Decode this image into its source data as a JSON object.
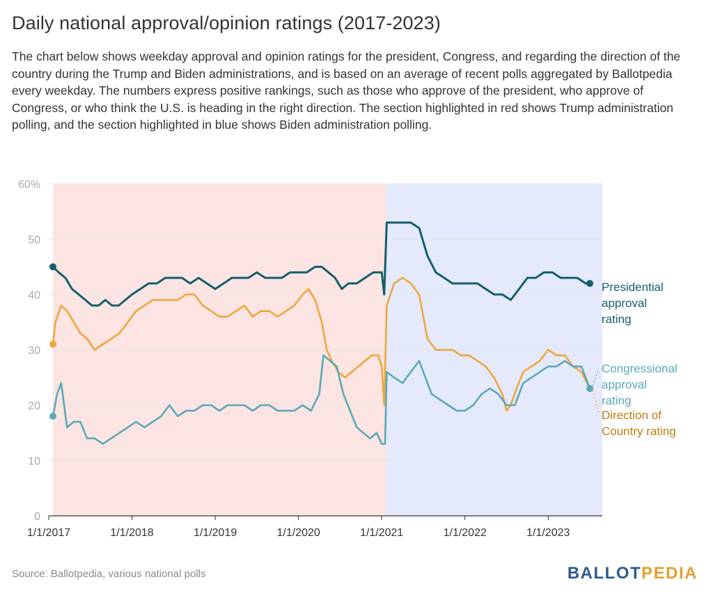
{
  "title": "Daily national approval/opinion ratings (2017-2023)",
  "description": "The chart below shows weekday approval and opinion ratings for the president, Congress, and regarding the direction of the country during the Trump and Biden administrations, and is based on an average of recent polls aggregated by Ballotpedia every weekday. The numbers express positive rankings, such as those who approve of the president, who approve of Congress, or who think the U.S. is heading in the right direction. The section highlighted in red shows Trump administration polling, and the section highlighted in blue shows Biden administration polling.",
  "source": "Source: Ballotpedia, various national polls",
  "logo": {
    "part1": "BALLOT",
    "part2": "PEDIA"
  },
  "colors": {
    "presidential": "#135e6b",
    "congressional": "#5aa8b5",
    "direction": "#f0a63a",
    "direction_label": "#c07c10",
    "trump_shade": "#fbe4e2",
    "biden_shade": "#e4e9fb"
  },
  "chart_data": {
    "type": "line",
    "y_ticks": [
      "0",
      "10",
      "20",
      "30",
      "40",
      "50",
      "60%"
    ],
    "y_tick_values": [
      0,
      10,
      20,
      30,
      40,
      50,
      60
    ],
    "ylim": [
      0,
      60
    ],
    "x_ticks": [
      "1/1/2017",
      "1/1/2018",
      "1/1/2019",
      "1/1/2020",
      "1/1/2021",
      "1/1/2022",
      "1/1/2023"
    ],
    "x_tick_values": [
      2017,
      2018,
      2019,
      2020,
      2021,
      2022,
      2023
    ],
    "xlim": [
      2017.0,
      2023.65
    ],
    "shaded_regions": [
      {
        "from": 2017.05,
        "to": 2021.05,
        "color_key": "trump_shade"
      },
      {
        "from": 2021.05,
        "to": 2023.65,
        "color_key": "biden_shade"
      }
    ],
    "series": [
      {
        "name": "Presidential approval rating",
        "label_lines": [
          "Presidential",
          "approval",
          "rating"
        ],
        "color_key": "presidential",
        "label_color_key": "presidential",
        "points": [
          [
            2017.05,
            45
          ],
          [
            2017.12,
            44
          ],
          [
            2017.2,
            43
          ],
          [
            2017.28,
            41
          ],
          [
            2017.36,
            40
          ],
          [
            2017.44,
            39
          ],
          [
            2017.52,
            38
          ],
          [
            2017.6,
            38
          ],
          [
            2017.68,
            39
          ],
          [
            2017.76,
            38
          ],
          [
            2017.84,
            38
          ],
          [
            2017.92,
            39
          ],
          [
            2018.0,
            40
          ],
          [
            2018.1,
            41
          ],
          [
            2018.2,
            42
          ],
          [
            2018.3,
            42
          ],
          [
            2018.4,
            43
          ],
          [
            2018.5,
            43
          ],
          [
            2018.6,
            43
          ],
          [
            2018.7,
            42
          ],
          [
            2018.8,
            43
          ],
          [
            2018.9,
            42
          ],
          [
            2019.0,
            41
          ],
          [
            2019.1,
            42
          ],
          [
            2019.2,
            43
          ],
          [
            2019.3,
            43
          ],
          [
            2019.4,
            43
          ],
          [
            2019.5,
            44
          ],
          [
            2019.6,
            43
          ],
          [
            2019.7,
            43
          ],
          [
            2019.8,
            43
          ],
          [
            2019.9,
            44
          ],
          [
            2020.0,
            44
          ],
          [
            2020.1,
            44
          ],
          [
            2020.2,
            45
          ],
          [
            2020.28,
            45
          ],
          [
            2020.36,
            44
          ],
          [
            2020.44,
            43
          ],
          [
            2020.52,
            41
          ],
          [
            2020.6,
            42
          ],
          [
            2020.7,
            42
          ],
          [
            2020.8,
            43
          ],
          [
            2020.9,
            44
          ],
          [
            2021.0,
            44
          ],
          [
            2021.03,
            40
          ],
          [
            2021.06,
            53
          ],
          [
            2021.15,
            53
          ],
          [
            2021.25,
            53
          ],
          [
            2021.35,
            53
          ],
          [
            2021.45,
            52
          ],
          [
            2021.55,
            47
          ],
          [
            2021.65,
            44
          ],
          [
            2021.75,
            43
          ],
          [
            2021.85,
            42
          ],
          [
            2021.95,
            42
          ],
          [
            2022.05,
            42
          ],
          [
            2022.15,
            42
          ],
          [
            2022.25,
            41
          ],
          [
            2022.35,
            40
          ],
          [
            2022.45,
            40
          ],
          [
            2022.55,
            39
          ],
          [
            2022.65,
            41
          ],
          [
            2022.75,
            43
          ],
          [
            2022.85,
            43
          ],
          [
            2022.95,
            44
          ],
          [
            2023.05,
            44
          ],
          [
            2023.15,
            43
          ],
          [
            2023.25,
            43
          ],
          [
            2023.35,
            43
          ],
          [
            2023.45,
            42
          ],
          [
            2023.5,
            42
          ]
        ]
      },
      {
        "name": "Congressional approval rating",
        "label_lines": [
          "Congressional",
          "approval",
          "rating"
        ],
        "color_key": "congressional",
        "label_color_key": "congressional",
        "points": [
          [
            2017.05,
            18
          ],
          [
            2017.1,
            22
          ],
          [
            2017.15,
            24
          ],
          [
            2017.22,
            16
          ],
          [
            2017.3,
            17
          ],
          [
            2017.38,
            17
          ],
          [
            2017.46,
            14
          ],
          [
            2017.55,
            14
          ],
          [
            2017.65,
            13
          ],
          [
            2017.75,
            14
          ],
          [
            2017.85,
            15
          ],
          [
            2017.95,
            16
          ],
          [
            2018.05,
            17
          ],
          [
            2018.15,
            16
          ],
          [
            2018.25,
            17
          ],
          [
            2018.35,
            18
          ],
          [
            2018.45,
            20
          ],
          [
            2018.55,
            18
          ],
          [
            2018.65,
            19
          ],
          [
            2018.75,
            19
          ],
          [
            2018.85,
            20
          ],
          [
            2018.95,
            20
          ],
          [
            2019.05,
            19
          ],
          [
            2019.15,
            20
          ],
          [
            2019.25,
            20
          ],
          [
            2019.35,
            20
          ],
          [
            2019.45,
            19
          ],
          [
            2019.55,
            20
          ],
          [
            2019.65,
            20
          ],
          [
            2019.75,
            19
          ],
          [
            2019.85,
            19
          ],
          [
            2019.95,
            19
          ],
          [
            2020.05,
            20
          ],
          [
            2020.15,
            19
          ],
          [
            2020.25,
            22
          ],
          [
            2020.3,
            29
          ],
          [
            2020.38,
            28
          ],
          [
            2020.46,
            27
          ],
          [
            2020.54,
            22
          ],
          [
            2020.62,
            19
          ],
          [
            2020.7,
            16
          ],
          [
            2020.78,
            15
          ],
          [
            2020.86,
            14
          ],
          [
            2020.94,
            15
          ],
          [
            2021.0,
            13
          ],
          [
            2021.04,
            13
          ],
          [
            2021.06,
            26
          ],
          [
            2021.15,
            25
          ],
          [
            2021.25,
            24
          ],
          [
            2021.35,
            26
          ],
          [
            2021.45,
            28
          ],
          [
            2021.55,
            24
          ],
          [
            2021.6,
            22
          ],
          [
            2021.7,
            21
          ],
          [
            2021.8,
            20
          ],
          [
            2021.9,
            19
          ],
          [
            2022.0,
            19
          ],
          [
            2022.1,
            20
          ],
          [
            2022.2,
            22
          ],
          [
            2022.3,
            23
          ],
          [
            2022.4,
            22
          ],
          [
            2022.5,
            20
          ],
          [
            2022.6,
            20
          ],
          [
            2022.7,
            24
          ],
          [
            2022.8,
            25
          ],
          [
            2022.9,
            26
          ],
          [
            2023.0,
            27
          ],
          [
            2023.1,
            27
          ],
          [
            2023.2,
            28
          ],
          [
            2023.3,
            27
          ],
          [
            2023.4,
            27
          ],
          [
            2023.5,
            23
          ]
        ]
      },
      {
        "name": "Direction of Country rating",
        "label_lines": [
          "Direction of",
          "Country rating"
        ],
        "color_key": "direction",
        "label_color_key": "direction_label",
        "points": [
          [
            2017.05,
            31
          ],
          [
            2017.08,
            35
          ],
          [
            2017.15,
            38
          ],
          [
            2017.22,
            37
          ],
          [
            2017.3,
            35
          ],
          [
            2017.38,
            33
          ],
          [
            2017.46,
            32
          ],
          [
            2017.55,
            30
          ],
          [
            2017.65,
            31
          ],
          [
            2017.75,
            32
          ],
          [
            2017.85,
            33
          ],
          [
            2017.95,
            35
          ],
          [
            2018.05,
            37
          ],
          [
            2018.15,
            38
          ],
          [
            2018.25,
            39
          ],
          [
            2018.35,
            39
          ],
          [
            2018.45,
            39
          ],
          [
            2018.55,
            39
          ],
          [
            2018.65,
            40
          ],
          [
            2018.75,
            40
          ],
          [
            2018.85,
            38
          ],
          [
            2018.95,
            37
          ],
          [
            2019.05,
            36
          ],
          [
            2019.15,
            36
          ],
          [
            2019.25,
            37
          ],
          [
            2019.35,
            38
          ],
          [
            2019.45,
            36
          ],
          [
            2019.55,
            37
          ],
          [
            2019.65,
            37
          ],
          [
            2019.75,
            36
          ],
          [
            2019.85,
            37
          ],
          [
            2019.95,
            38
          ],
          [
            2020.05,
            40
          ],
          [
            2020.12,
            41
          ],
          [
            2020.2,
            39
          ],
          [
            2020.28,
            35
          ],
          [
            2020.34,
            30
          ],
          [
            2020.4,
            28
          ],
          [
            2020.48,
            26
          ],
          [
            2020.56,
            25
          ],
          [
            2020.64,
            26
          ],
          [
            2020.72,
            27
          ],
          [
            2020.8,
            28
          ],
          [
            2020.88,
            29
          ],
          [
            2020.96,
            29
          ],
          [
            2021.0,
            27
          ],
          [
            2021.03,
            20
          ],
          [
            2021.06,
            38
          ],
          [
            2021.15,
            42
          ],
          [
            2021.25,
            43
          ],
          [
            2021.35,
            42
          ],
          [
            2021.45,
            40
          ],
          [
            2021.55,
            32
          ],
          [
            2021.65,
            30
          ],
          [
            2021.75,
            30
          ],
          [
            2021.85,
            30
          ],
          [
            2021.95,
            29
          ],
          [
            2022.05,
            29
          ],
          [
            2022.15,
            28
          ],
          [
            2022.25,
            27
          ],
          [
            2022.35,
            25
          ],
          [
            2022.45,
            22
          ],
          [
            2022.5,
            19
          ],
          [
            2022.55,
            20
          ],
          [
            2022.62,
            23
          ],
          [
            2022.7,
            26
          ],
          [
            2022.8,
            27
          ],
          [
            2022.9,
            28
          ],
          [
            2023.0,
            30
          ],
          [
            2023.1,
            29
          ],
          [
            2023.2,
            29
          ],
          [
            2023.3,
            27
          ],
          [
            2023.4,
            26
          ],
          [
            2023.5,
            23
          ]
        ]
      }
    ]
  }
}
